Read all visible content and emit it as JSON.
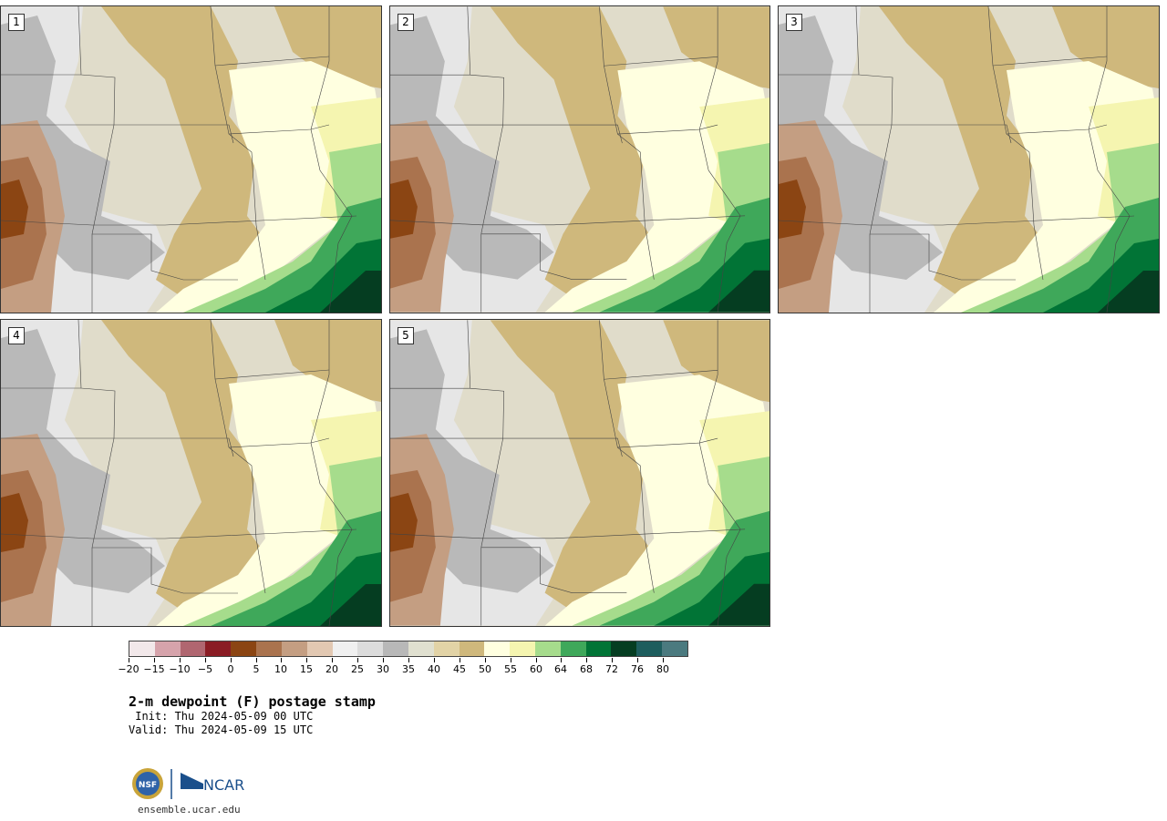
{
  "panels": [
    {
      "label": "1"
    },
    {
      "label": "2"
    },
    {
      "label": "3"
    },
    {
      "label": "4"
    },
    {
      "label": "5"
    }
  ],
  "legend": {
    "colors": [
      "#f2e8ea",
      "#d6a3ab",
      "#b06670",
      "#8a1c24",
      "#8b4513",
      "#aa734e",
      "#c49e82",
      "#e2c8b2",
      "#f0f0f0",
      "#dcdcdc",
      "#b8b8b8",
      "#e0e0d0",
      "#e2d3a6",
      "#cfb87c",
      "#ffffe0",
      "#f5f5b0",
      "#a6dc8c",
      "#3fa85a",
      "#017436",
      "#053d21",
      "#1d5d5d",
      "#4b7a7f"
    ],
    "ticks": [
      "−20",
      "−15",
      "−10",
      "−5",
      "0",
      "5",
      "10",
      "15",
      "20",
      "25",
      "30",
      "35",
      "40",
      "45",
      "50",
      "55",
      "60",
      "64",
      "68",
      "72",
      "76",
      "80"
    ]
  },
  "title": "2-m dewpoint (F) postage stamp",
  "init": " Init: Thu 2024-05-09 00 UTC",
  "valid": "Valid: Thu 2024-05-09 15 UTC",
  "logo": {
    "nsf_text": "NSF",
    "ncar_text": "NCAR",
    "url": "ensemble.ucar.edu",
    "ncar_color": "#1a4f8b"
  }
}
